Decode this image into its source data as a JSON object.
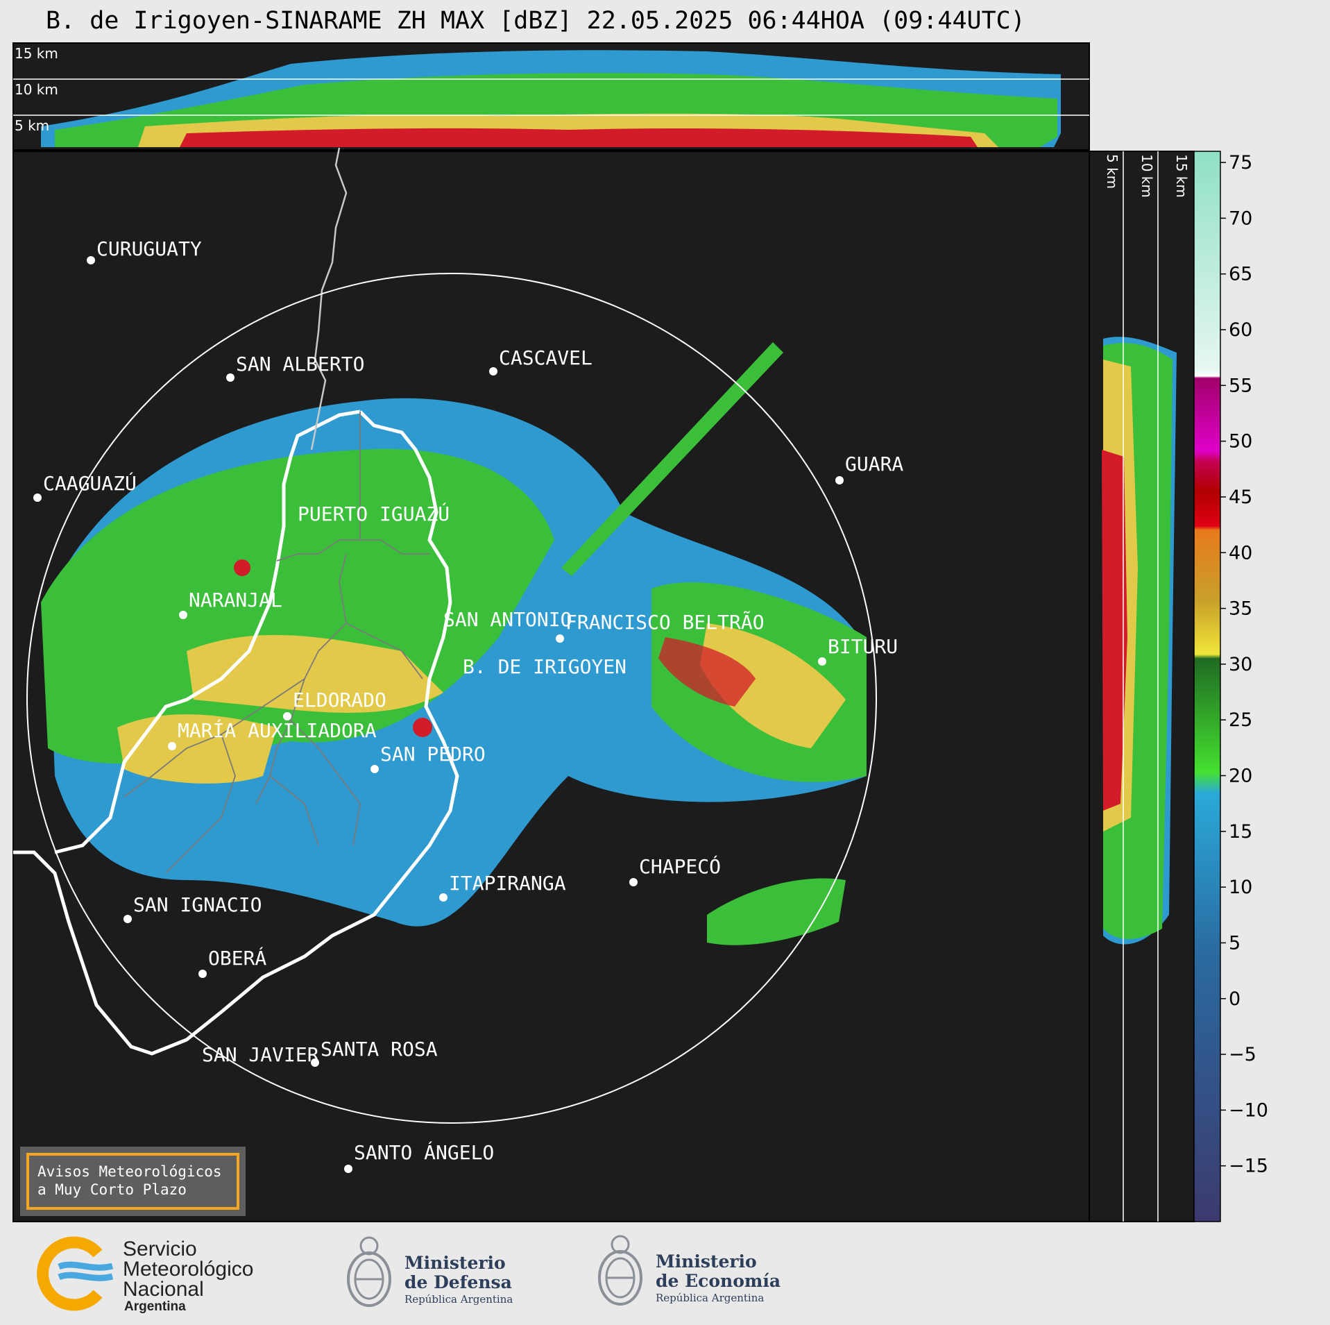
{
  "title": "B. de Irigoyen-SINARAME ZH MAX [dBZ] 22.05.2025 06:44HOA (09:44UTC)",
  "top_panel": {
    "km_labels": [
      "15 km",
      "10 km",
      "5 km"
    ]
  },
  "side_panel": {
    "km_labels": [
      "5 km",
      "10 km",
      "15 km"
    ]
  },
  "places": [
    {
      "name": "CURUGUATY"
    },
    {
      "name": "SAN ALBERTO"
    },
    {
      "name": "CASCAVEL"
    },
    {
      "name": "CAAGUAZÚ"
    },
    {
      "name": "GUARA"
    },
    {
      "name": "PUERTO IGUAZÚ"
    },
    {
      "name": "NARANJAL"
    },
    {
      "name": "SAN ANTONIO"
    },
    {
      "name": "FRANCISCO BELTRÃO"
    },
    {
      "name": "BITURU"
    },
    {
      "name": "B. DE IRIGOYEN"
    },
    {
      "name": "ELDORADO"
    },
    {
      "name": "MARÍA AUXILIADORA"
    },
    {
      "name": "SAN PEDRO"
    },
    {
      "name": "CHAPECÓ"
    },
    {
      "name": "ITAPIRANGA"
    },
    {
      "name": "SAN IGNACIO"
    },
    {
      "name": "OBERÁ"
    },
    {
      "name": "SAN JAVIER"
    },
    {
      "name": "SANTA ROSA"
    },
    {
      "name": "SANTO ÁNGELO"
    }
  ],
  "colorbar": {
    "ticks": [
      "75",
      "70",
      "65",
      "60",
      "55",
      "50",
      "45",
      "40",
      "35",
      "30",
      "25",
      "20",
      "15",
      "10",
      "5",
      "0",
      "−5",
      "−10",
      "−15"
    ],
    "min": -20,
    "max": 76
  },
  "warning": {
    "line1": "Avisos Meteorológicos",
    "line2": "a Muy Corto Plazo"
  },
  "logos": {
    "smn": {
      "line1": "Servicio",
      "line2": "Meteorológico",
      "line3": "Nacional",
      "line4": "Argentina"
    },
    "defensa": {
      "line1": "Ministerio",
      "line2": "de Defensa",
      "line3": "República Argentina"
    },
    "economia": {
      "line1": "Ministerio",
      "line2": "de Economía",
      "line3": "República Argentina"
    }
  }
}
